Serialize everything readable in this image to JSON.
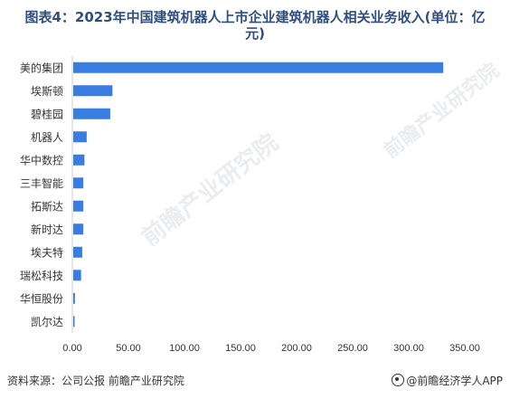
{
  "title": "图表4：2023年中国建筑机器人上市企业建筑机器人相关业务收入(单位：亿元)",
  "footer": {
    "source": "资料来源：公司公报 前瞻产业研究院",
    "brand": "@前瞻经济学人APP"
  },
  "watermark": {
    "text_1": "前瞻产业研究院",
    "text_2": "前瞻产业研究院"
  },
  "colors": {
    "bar": "#3a7de0",
    "title": "#2f4f7f",
    "axis": "#cfcfcf"
  },
  "chart_data": {
    "type": "bar",
    "orientation": "horizontal",
    "title": "图表4：2023年中国建筑机器人上市企业建筑机器人相关业务收入(单位：亿元)",
    "categories": [
      "美的集团",
      "埃斯顿",
      "碧桂园",
      "机器人",
      "华中数控",
      "三丰智能",
      "拓斯达",
      "新时达",
      "埃夫特",
      "瑞松科技",
      "华恒股份",
      "凯尔达"
    ],
    "values": [
      330.0,
      35.0,
      33.0,
      12.0,
      10.0,
      9.0,
      9.0,
      9.0,
      8.0,
      7.0,
      1.5,
      1.0
    ],
    "xlim": [
      0,
      350
    ],
    "xticks": [
      "0.00",
      "50.00",
      "100.00",
      "150.00",
      "200.00",
      "250.00",
      "300.00",
      "350.00"
    ],
    "grid": false,
    "legend": "none"
  }
}
